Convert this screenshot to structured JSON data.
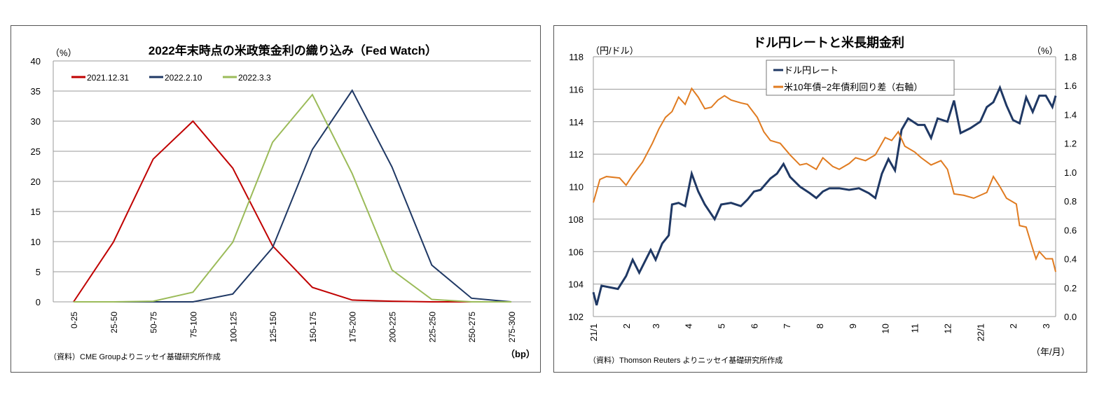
{
  "chart_data": [
    {
      "type": "line",
      "title": "2022年末時点の米政策金利の織り込み（Fed Watch）",
      "ylabel": "（%）",
      "xlabel": "（bp）",
      "source": "（資料）CME Groupよりニッセイ基礎研究所作成",
      "categories": [
        "0-25",
        "25-50",
        "50-75",
        "75-100",
        "100-125",
        "125-150",
        "150-175",
        "175-200",
        "200-225",
        "225-250",
        "250-275",
        "275-300"
      ],
      "ylim": [
        0,
        40
      ],
      "yticks": [
        0,
        5,
        10,
        15,
        20,
        25,
        30,
        35,
        40
      ],
      "grid": true,
      "legend": "top-left",
      "series": [
        {
          "name": "2021.12.31",
          "color": "#C00000",
          "values": [
            0,
            9.9,
            23.7,
            30.0,
            22.2,
            9.3,
            2.4,
            0.3,
            0.1,
            0,
            0,
            0
          ]
        },
        {
          "name": "2022.2.10",
          "color": "#1F3864",
          "values": [
            0,
            0,
            0,
            0,
            1.3,
            9.0,
            25.3,
            35.1,
            22.4,
            6.1,
            0.6,
            0
          ]
        },
        {
          "name": "2022.3.3",
          "color": "#9BBB59",
          "values": [
            0,
            0,
            0.1,
            1.6,
            9.9,
            26.5,
            34.4,
            21.3,
            5.3,
            0.4,
            0,
            0
          ]
        }
      ]
    },
    {
      "type": "line",
      "title": "ドル円レートと米長期金利",
      "ylabel": "（円/ドル）",
      "y2label": "（%）",
      "xlabel": "（年/月）",
      "source": "（資料）Thomson Reuters よりニッセイ基礎研究所作成",
      "xticks": [
        "21/1",
        "2",
        "3",
        "4",
        "5",
        "6",
        "7",
        "8",
        "9",
        "10",
        "11",
        "12",
        "22/1",
        "2",
        "3"
      ],
      "ylim": [
        102,
        118
      ],
      "yticks": [
        102,
        104,
        106,
        108,
        110,
        112,
        114,
        116,
        118
      ],
      "y2lim": [
        0,
        1.8
      ],
      "y2ticks": [
        "0.0",
        "0.2",
        "0.4",
        "0.6",
        "0.8",
        "1.0",
        "1.2",
        "1.4",
        "1.6",
        "1.8"
      ],
      "grid": true,
      "legend": "top-center",
      "series": [
        {
          "name": "ドル円レート",
          "axis": "left",
          "color": "#1F3864",
          "x": [
            0,
            0.1,
            0.25,
            0.5,
            0.75,
            1.0,
            1.2,
            1.4,
            1.6,
            1.75,
            1.9,
            2.1,
            2.3,
            2.4,
            2.6,
            2.8,
            3.0,
            3.2,
            3.4,
            3.7,
            3.9,
            4.2,
            4.5,
            4.7,
            4.9,
            5.1,
            5.4,
            5.6,
            5.8,
            6.0,
            6.3,
            6.6,
            6.8,
            7.0,
            7.2,
            7.5,
            7.8,
            8.1,
            8.4,
            8.6,
            8.8,
            9.0,
            9.2,
            9.4,
            9.6,
            9.9,
            10.1,
            10.3,
            10.5,
            10.8,
            11.0,
            11.2,
            11.5,
            11.8,
            12.0,
            12.2,
            12.4,
            12.6,
            12.8,
            13.0,
            13.2,
            13.4,
            13.6,
            13.8,
            14.0,
            14.1
          ],
          "values": [
            103.5,
            102.7,
            103.9,
            103.8,
            103.7,
            104.5,
            105.5,
            104.7,
            105.5,
            106.1,
            105.5,
            106.5,
            107.0,
            108.9,
            109.0,
            108.8,
            110.8,
            109.7,
            108.9,
            108.0,
            108.9,
            109.0,
            108.8,
            109.2,
            109.7,
            109.8,
            110.5,
            110.8,
            111.4,
            110.6,
            110.0,
            109.6,
            109.3,
            109.7,
            109.9,
            109.9,
            109.8,
            109.9,
            109.6,
            109.3,
            110.8,
            111.7,
            111.0,
            113.5,
            114.2,
            113.8,
            113.8,
            113.0,
            114.2,
            114.0,
            115.3,
            113.3,
            113.6,
            114.0,
            114.9,
            115.2,
            116.1,
            115.0,
            114.1,
            113.9,
            115.5,
            114.6,
            115.6,
            115.6,
            114.9,
            115.6
          ]
        },
        {
          "name": "米10年債−2年債利回り差（右軸）",
          "axis": "right",
          "color": "#E07B20",
          "x": [
            0,
            0.2,
            0.4,
            0.8,
            1.0,
            1.2,
            1.5,
            1.8,
            2.0,
            2.2,
            2.4,
            2.6,
            2.8,
            3.0,
            3.2,
            3.4,
            3.6,
            3.8,
            4.0,
            4.2,
            4.5,
            4.7,
            5.0,
            5.2,
            5.4,
            5.7,
            6.0,
            6.3,
            6.5,
            6.8,
            7.0,
            7.3,
            7.5,
            7.8,
            8.0,
            8.3,
            8.6,
            8.9,
            9.1,
            9.3,
            9.5,
            9.8,
            10.0,
            10.3,
            10.6,
            10.8,
            11.0,
            11.3,
            11.6,
            11.8,
            12.0,
            12.2,
            12.4,
            12.6,
            12.9,
            13.0,
            13.2,
            13.4,
            13.5,
            13.6,
            13.8,
            14.0,
            14.1
          ],
          "values": [
            0.79,
            0.95,
            0.97,
            0.96,
            0.91,
            0.98,
            1.07,
            1.2,
            1.3,
            1.38,
            1.42,
            1.52,
            1.47,
            1.58,
            1.52,
            1.44,
            1.45,
            1.5,
            1.53,
            1.5,
            1.48,
            1.47,
            1.38,
            1.28,
            1.22,
            1.2,
            1.12,
            1.05,
            1.06,
            1.02,
            1.1,
            1.04,
            1.02,
            1.06,
            1.1,
            1.08,
            1.12,
            1.24,
            1.22,
            1.28,
            1.18,
            1.14,
            1.1,
            1.05,
            1.08,
            1.02,
            0.85,
            0.84,
            0.82,
            0.84,
            0.86,
            0.97,
            0.9,
            0.82,
            0.78,
            0.63,
            0.62,
            0.47,
            0.4,
            0.45,
            0.4,
            0.4,
            0.31
          ]
        }
      ]
    }
  ]
}
